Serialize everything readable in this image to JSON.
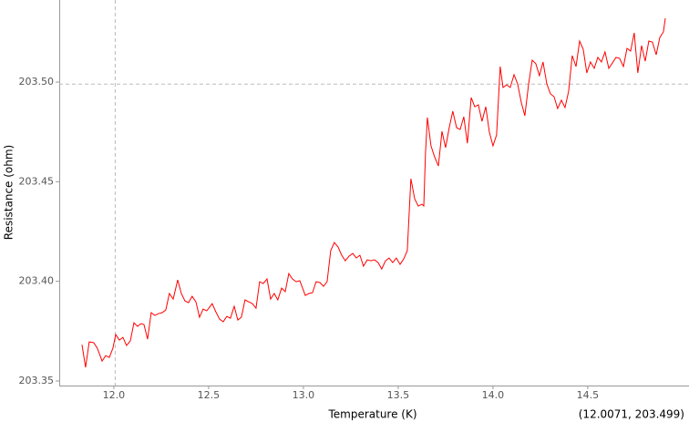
{
  "chart_data": {
    "type": "line",
    "xlabel": "Temperature (K)",
    "ylabel": "Resistance (ohm)",
    "xlim": [
      11.712,
      15.034
    ],
    "ylim": [
      203.3477,
      203.5412
    ],
    "xticks": [
      {
        "value": 12.0,
        "label": "12.0"
      },
      {
        "value": 12.5,
        "label": "12.5"
      },
      {
        "value": 13.0,
        "label": "13.0"
      },
      {
        "value": 13.5,
        "label": "13.5"
      },
      {
        "value": 14.0,
        "label": "14.0"
      },
      {
        "value": 14.5,
        "label": "14.5"
      }
    ],
    "yticks": [
      203.35,
      {
        "value": 203.4,
        "label": "203.40"
      },
      203.45,
      {
        "value": 203.5,
        "label": "203.50"
      }
    ],
    "grid": false,
    "crosshair": {
      "x": 12.0071,
      "y": 203.499,
      "label": "(12.0071, 203.499)"
    },
    "series": [
      {
        "color": "#ff0000",
        "x": [
          11.832,
          11.851,
          11.87,
          11.894,
          11.913,
          11.938,
          11.957,
          11.976,
          11.995,
          12.01,
          12.029,
          12.048,
          12.067,
          12.087,
          12.106,
          12.125,
          12.144,
          12.159,
          12.178,
          12.197,
          12.216,
          12.236,
          12.255,
          12.274,
          12.293,
          12.313,
          12.337,
          12.356,
          12.375,
          12.394,
          12.413,
          12.433,
          12.452,
          12.471,
          12.49,
          12.519,
          12.538,
          12.558,
          12.577,
          12.596,
          12.615,
          12.635,
          12.654,
          12.673,
          12.692,
          12.712,
          12.731,
          12.75,
          12.769,
          12.788,
          12.808,
          12.827,
          12.846,
          12.865,
          12.885,
          12.904,
          12.923,
          12.942,
          12.962,
          12.981,
          13.01,
          13.029,
          13.048,
          13.067,
          13.087,
          13.106,
          13.125,
          13.144,
          13.163,
          13.183,
          13.202,
          13.221,
          13.24,
          13.26,
          13.279,
          13.298,
          13.317,
          13.337,
          13.356,
          13.375,
          13.394,
          13.413,
          13.433,
          13.452,
          13.471,
          13.49,
          13.51,
          13.529,
          13.548,
          13.567,
          13.587,
          13.606,
          13.625,
          13.635,
          13.644,
          13.654,
          13.673,
          13.692,
          13.712,
          13.731,
          13.75,
          13.769,
          13.788,
          13.808,
          13.827,
          13.846,
          13.865,
          13.885,
          13.904,
          13.923,
          13.942,
          13.962,
          13.981,
          14.0,
          14.019,
          14.038,
          14.053,
          14.072,
          14.091,
          14.111,
          14.13,
          14.149,
          14.168,
          14.188,
          14.207,
          14.226,
          14.245,
          14.264,
          14.284,
          14.303,
          14.322,
          14.341,
          14.361,
          14.38,
          14.399,
          14.418,
          14.438,
          14.457,
          14.476,
          14.495,
          14.514,
          14.534,
          14.553,
          14.572,
          14.591,
          14.611,
          14.63,
          14.649,
          14.668,
          14.688,
          14.707,
          14.726,
          14.745,
          14.764,
          14.784,
          14.803,
          14.822,
          14.841,
          14.861,
          14.88,
          14.899,
          14.909
        ],
        "values": [
          203.3682,
          203.3568,
          203.3696,
          203.3692,
          203.3664,
          203.36,
          203.3627,
          203.3618,
          203.3664,
          203.3733,
          203.3705,
          203.3719,
          203.3678,
          203.3701,
          203.3792,
          203.3774,
          203.3788,
          203.3783,
          203.371,
          203.3843,
          203.3829,
          203.3838,
          203.3843,
          203.3856,
          203.3939,
          203.3911,
          203.4007,
          203.3939,
          203.3902,
          203.3893,
          203.3925,
          203.3897,
          203.382,
          203.3861,
          203.3852,
          203.3888,
          203.3847,
          203.381,
          203.3797,
          203.3824,
          203.3815,
          203.3875,
          203.3806,
          203.382,
          203.3907,
          203.3897,
          203.3888,
          203.3865,
          203.3998,
          203.3989,
          203.4012,
          203.3911,
          203.3939,
          203.3907,
          203.3966,
          203.3948,
          203.4039,
          203.4012,
          203.3998,
          203.4003,
          203.3929,
          203.3939,
          203.3943,
          203.3998,
          203.3994,
          203.3975,
          203.3998,
          203.4154,
          203.4195,
          203.4172,
          203.4131,
          203.4103,
          203.4126,
          203.414,
          203.4117,
          203.4131,
          203.4076,
          203.4108,
          203.4103,
          203.4108,
          203.4094,
          203.4062,
          203.4103,
          203.4117,
          203.4094,
          203.4117,
          203.4085,
          203.4112,
          203.4154,
          203.4515,
          203.4414,
          203.4378,
          203.4387,
          203.4378,
          203.4643,
          203.4822,
          203.468,
          203.4625,
          203.4579,
          203.4753,
          203.4671,
          203.4771,
          203.4854,
          203.4771,
          203.4762,
          203.4826,
          203.4693,
          203.4922,
          203.4876,
          203.4886,
          203.4803,
          203.4876,
          203.4748,
          203.468,
          203.4735,
          203.5078,
          203.4973,
          203.4986,
          203.4973,
          203.5037,
          203.4991,
          203.4899,
          203.4831,
          203.4991,
          203.511,
          203.5092,
          203.5032,
          203.5101,
          203.4991,
          203.4941,
          203.4927,
          203.4867,
          203.4909,
          203.4872,
          203.4954,
          203.5133,
          203.5078,
          203.5206,
          203.5165,
          203.5046,
          203.5101,
          203.5069,
          203.5124,
          203.5101,
          203.5151,
          203.5069,
          203.5096,
          203.5124,
          203.5119,
          203.5078,
          203.5169,
          203.5156,
          203.5247,
          203.5046,
          203.5183,
          203.5105,
          203.5206,
          203.5201,
          203.5137,
          203.5224,
          203.5252,
          203.532
        ]
      }
    ]
  }
}
